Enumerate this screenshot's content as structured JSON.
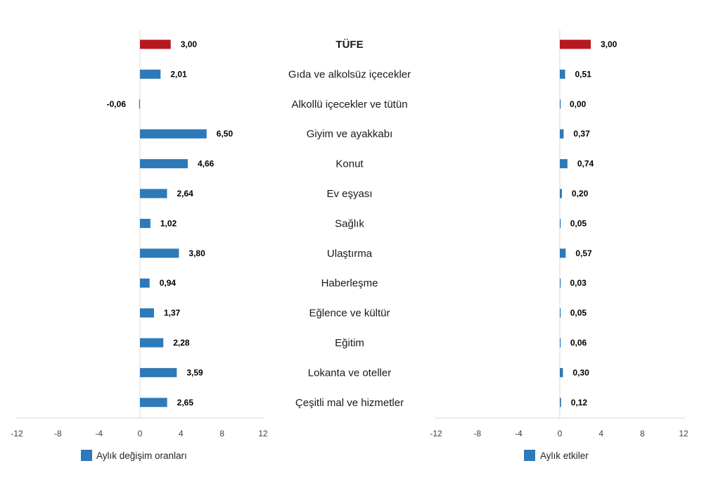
{
  "chart_data": [
    {
      "type": "bar",
      "orientation": "horizontal",
      "categories": [
        "TÜFE",
        "Gıda ve alkolsüz içecekler",
        "Alkollü içecekler ve tütün",
        "Giyim ve ayakkabı",
        "Konut",
        "Ev eşyası",
        "Sağlık",
        "Ulaştırma",
        "Haberleşme",
        "Eğlence ve kültür",
        "Eğitim",
        "Lokanta ve oteller",
        "Çeşitli mal ve hizmetler"
      ],
      "series": [
        {
          "name": "Aylık değişim oranları",
          "values": [
            3.0,
            2.01,
            -0.06,
            6.5,
            4.66,
            2.64,
            1.02,
            3.8,
            0.94,
            1.37,
            2.28,
            3.59,
            2.65
          ],
          "labels": [
            "3,00",
            "2,01",
            "-0,06",
            "6,50",
            "4,66",
            "2,64",
            "1,02",
            "3,80",
            "0,94",
            "1,37",
            "2,28",
            "3,59",
            "2,65"
          ]
        }
      ],
      "xlim": [
        -12,
        12
      ],
      "xticks": [
        -12,
        -8,
        -4,
        0,
        4,
        8,
        12
      ],
      "xtick_labels": [
        "-12",
        "-8",
        "-4",
        "0",
        "4",
        "8",
        "12"
      ],
      "grid": false,
      "legend": "bottom",
      "colors": {
        "default": "#2e7ab8",
        "highlight": "#b5191f"
      },
      "highlight_category": "TÜFE"
    },
    {
      "type": "bar",
      "orientation": "horizontal",
      "categories": [
        "TÜFE",
        "Gıda ve alkolsüz içecekler",
        "Alkollü içecekler ve tütün",
        "Giyim ve ayakkabı",
        "Konut",
        "Ev eşyası",
        "Sağlık",
        "Ulaştırma",
        "Haberleşme",
        "Eğlence ve kültür",
        "Eğitim",
        "Lokanta ve oteller",
        "Çeşitli mal ve hizmetler"
      ],
      "series": [
        {
          "name": "Aylık etkiler",
          "values": [
            3.0,
            0.51,
            0.0,
            0.37,
            0.74,
            0.2,
            0.05,
            0.57,
            0.03,
            0.05,
            0.06,
            0.3,
            0.12
          ],
          "labels": [
            "3,00",
            "0,51",
            "0,00",
            "0,37",
            "0,74",
            "0,20",
            "0,05",
            "0,57",
            "0,03",
            "0,05",
            "0,06",
            "0,30",
            "0,12"
          ]
        }
      ],
      "xlim": [
        -12,
        12
      ],
      "xticks": [
        -12,
        -8,
        -4,
        0,
        4,
        8,
        12
      ],
      "xtick_labels": [
        "-12",
        "-8",
        "-4",
        "0",
        "4",
        "8",
        "12"
      ],
      "grid": false,
      "legend": "bottom",
      "colors": {
        "default": "#2e7ab8",
        "highlight": "#b5191f"
      },
      "highlight_category": "TÜFE"
    }
  ]
}
